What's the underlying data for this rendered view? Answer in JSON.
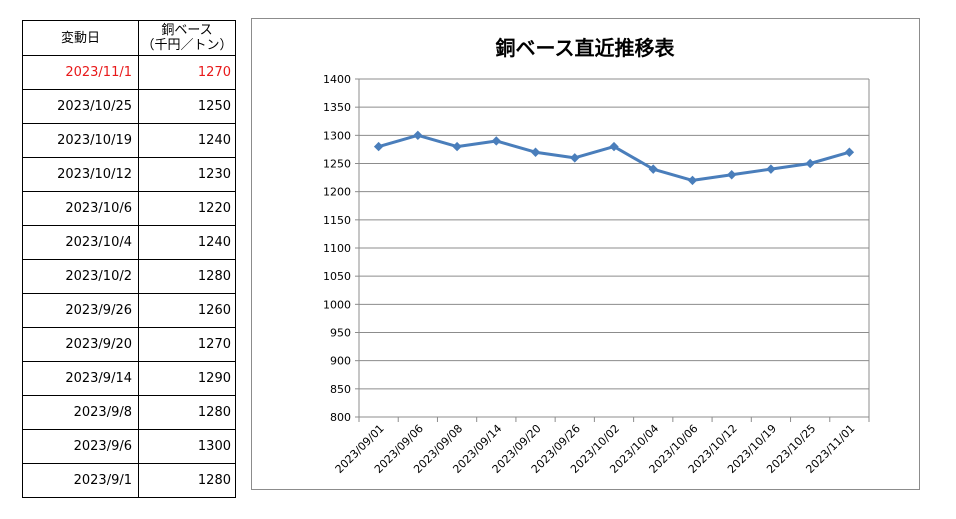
{
  "table": {
    "headers": {
      "date": "変動日",
      "price_line1": "銅ベース",
      "price_line2": "（千円／トン）"
    },
    "rows": [
      {
        "date": "2023/11/1",
        "price": "1270",
        "highlight": true
      },
      {
        "date": "2023/10/25",
        "price": "1250"
      },
      {
        "date": "2023/10/19",
        "price": "1240"
      },
      {
        "date": "2023/10/12",
        "price": "1230"
      },
      {
        "date": "2023/10/6",
        "price": "1220"
      },
      {
        "date": "2023/10/4",
        "price": "1240"
      },
      {
        "date": "2023/10/2",
        "price": "1280"
      },
      {
        "date": "2023/9/26",
        "price": "1260"
      },
      {
        "date": "2023/9/20",
        "price": "1270"
      },
      {
        "date": "2023/9/14",
        "price": "1290"
      },
      {
        "date": "2023/9/8",
        "price": "1280"
      },
      {
        "date": "2023/9/6",
        "price": "1300"
      },
      {
        "date": "2023/9/1",
        "price": "1280"
      }
    ],
    "highlight_color": "#e8191a"
  },
  "chart_data": {
    "type": "line",
    "title": "銅ベース直近推移表",
    "xlabel": "",
    "ylabel": "",
    "categories": [
      "2023/09/01",
      "2023/09/06",
      "2023/09/08",
      "2023/09/14",
      "2023/09/20",
      "2023/09/26",
      "2023/10/02",
      "2023/10/04",
      "2023/10/06",
      "2023/10/12",
      "2023/10/19",
      "2023/10/25",
      "2023/11/01"
    ],
    "series": [
      {
        "values": [
          1280,
          1300,
          1280,
          1290,
          1270,
          1260,
          1280,
          1240,
          1220,
          1230,
          1240,
          1250,
          1270
        ],
        "color": "#4a7ebb",
        "marker": "diamond"
      }
    ],
    "ylim": [
      800,
      1400
    ],
    "yticks": [
      800,
      850,
      900,
      950,
      1000,
      1050,
      1100,
      1150,
      1200,
      1250,
      1300,
      1350,
      1400
    ],
    "grid": true,
    "legend": "none"
  }
}
